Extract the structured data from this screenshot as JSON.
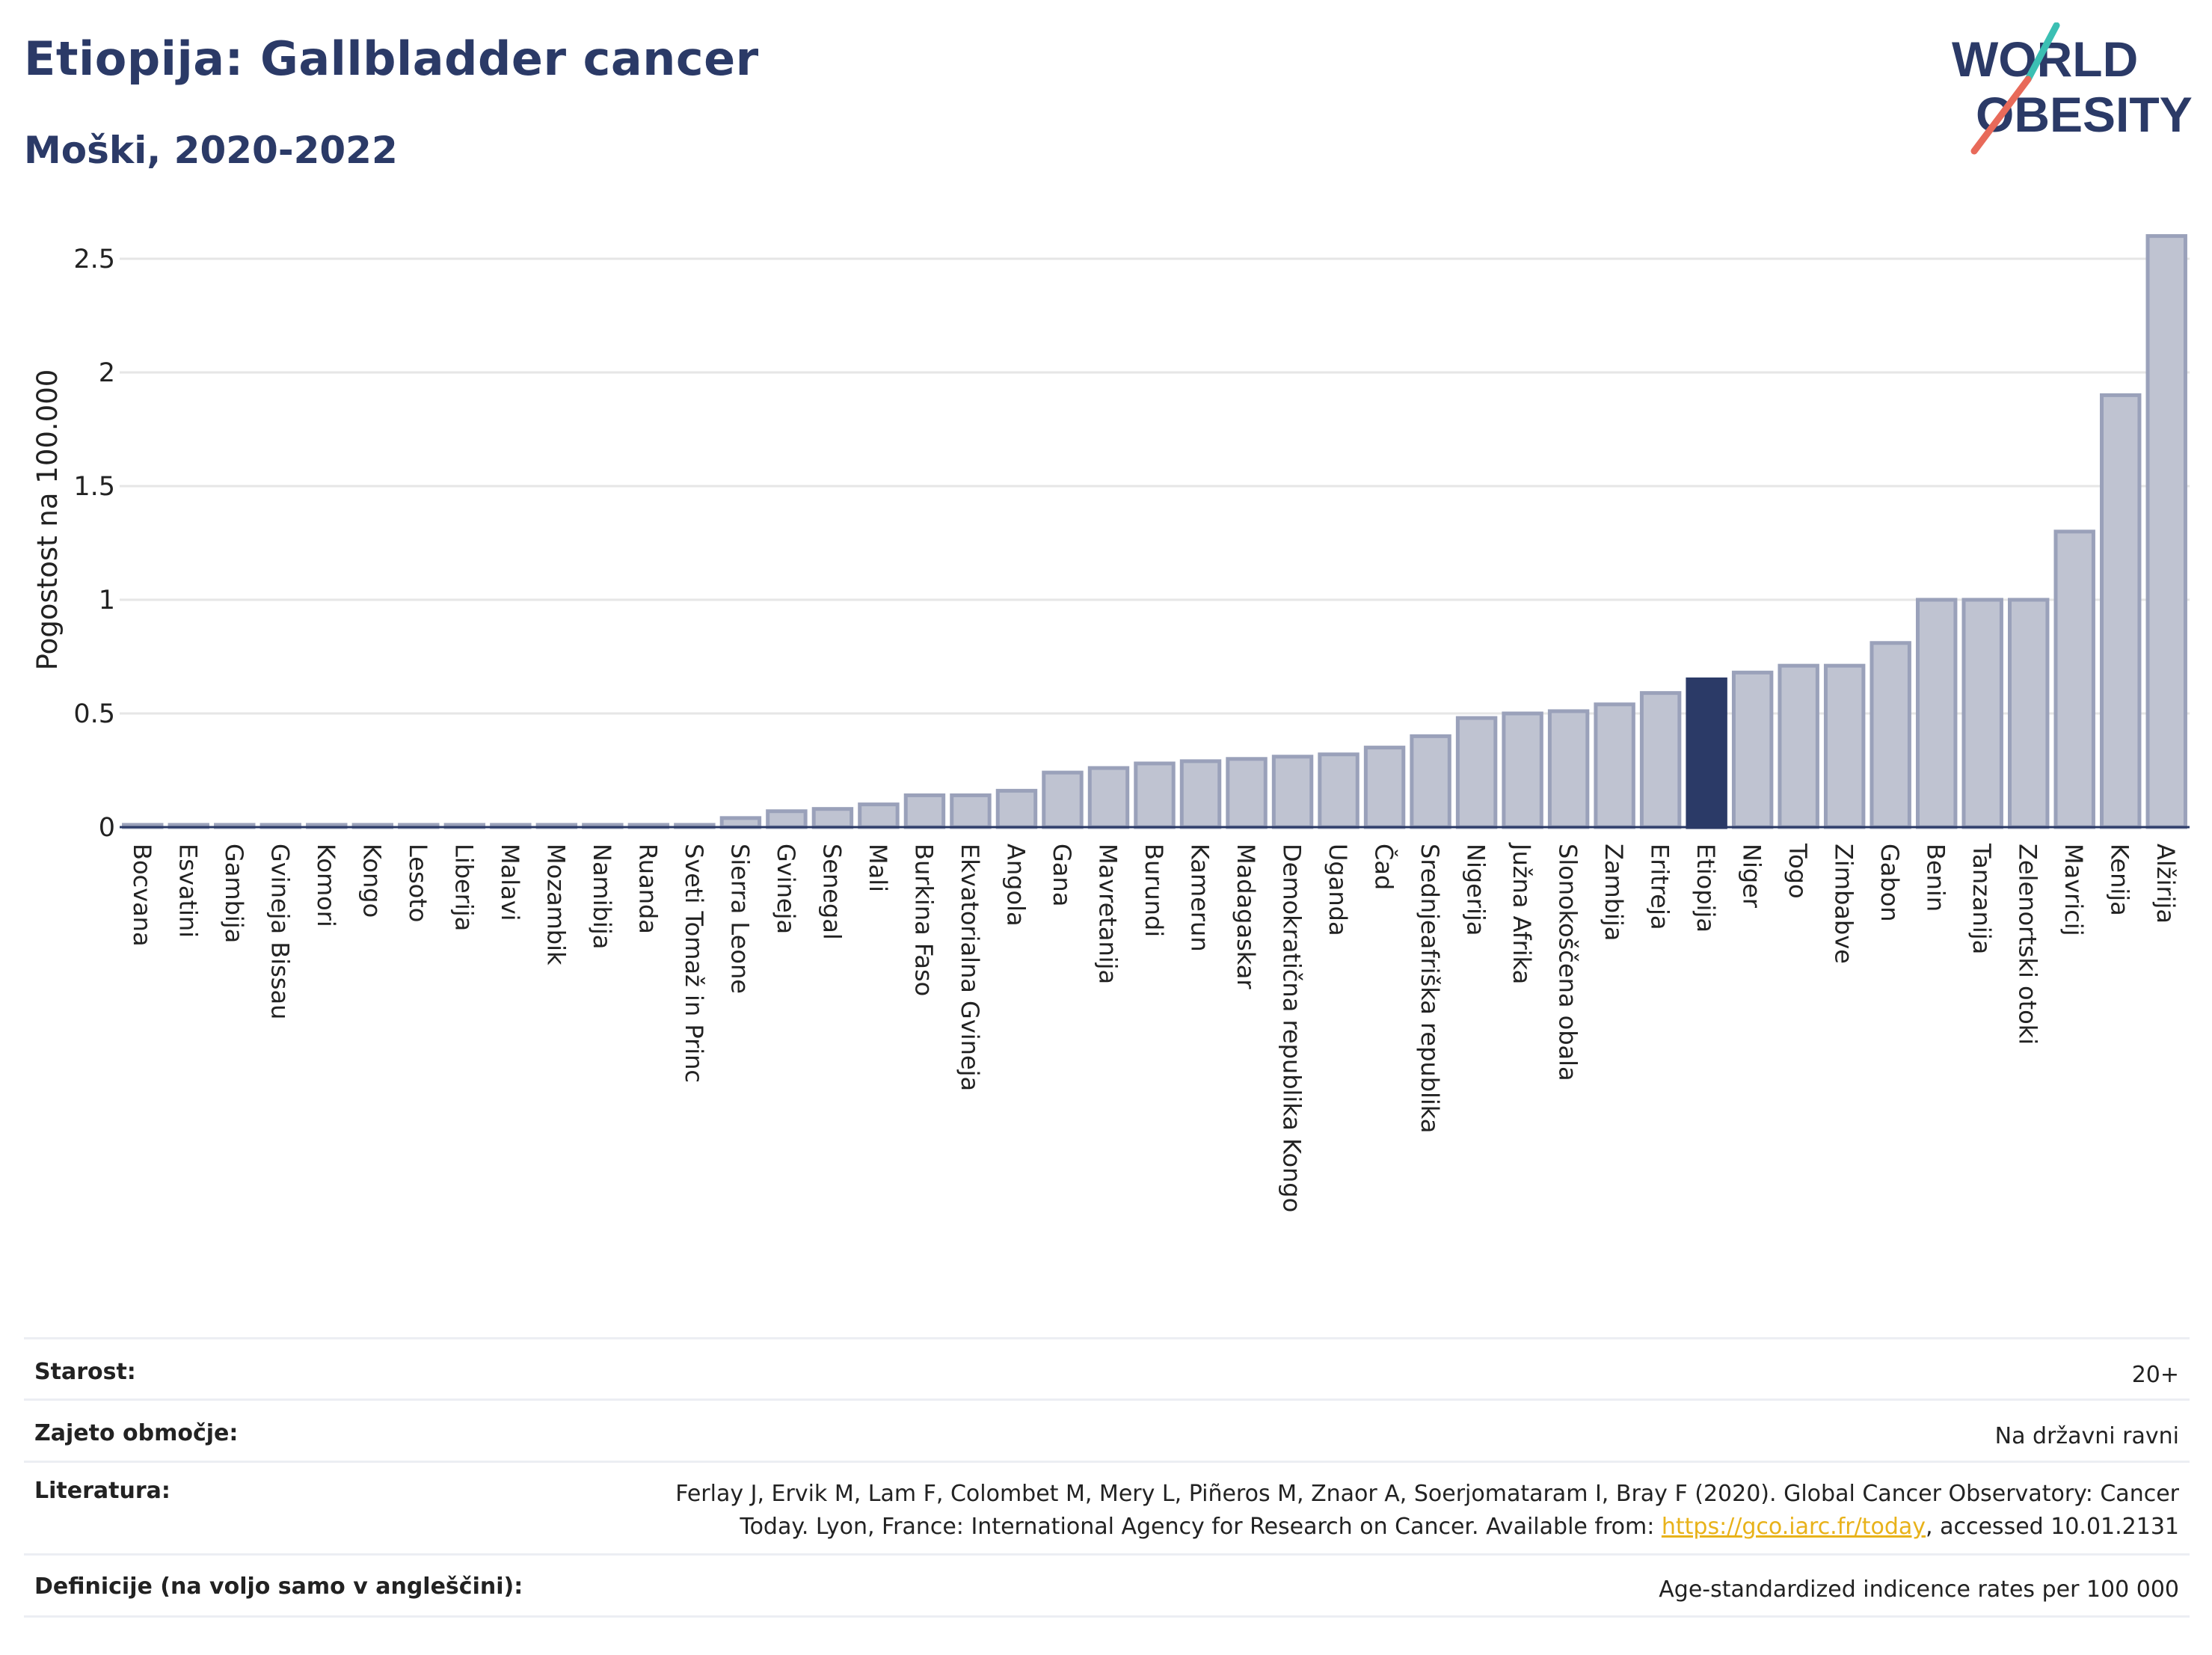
{
  "header": {
    "title": "Etiopija: Gallbladder cancer",
    "subtitle": "Moški, 2020-2022",
    "logo_line1": "WORLD",
    "logo_line2": "OBESITY"
  },
  "colors": {
    "bar": "#bfc3d1",
    "bar_stroke": "#9aa1ba",
    "highlight": "#2b3a67",
    "grid": "#e6e6e6",
    "axis": "#2b3a67",
    "logo_text": "#2b3a67",
    "logo_teal": "#3bbfb3",
    "logo_coral": "#e86a5a",
    "link": "#e8b21a"
  },
  "chart_data": {
    "type": "bar",
    "ylabel": "Pogostost na 100.000",
    "ylim": [
      0,
      2.7
    ],
    "yticks": [
      0,
      0.5,
      1,
      1.5,
      2,
      2.5
    ],
    "ytick_labels": [
      "0",
      "0.5",
      "1",
      "1.5",
      "2",
      "2.5"
    ],
    "grid": true,
    "highlight_category": "Etiopija",
    "categories": [
      "Bocvana",
      "Esvatini",
      "Gambija",
      "Gvineja Bissau",
      "Komori",
      "Kongo",
      "Lesoto",
      "Liberija",
      "Malavi",
      "Mozambik",
      "Namibija",
      "Ruanda",
      "Sveti Tomaž in Princ",
      "Sierra Leone",
      "Gvineja",
      "Senegal",
      "Mali",
      "Burkina Faso",
      "Ekvatorialna Gvineja",
      "Angola",
      "Gana",
      "Mavretanija",
      "Burundi",
      "Kamerun",
      "Madagaskar",
      "Demokratična republika Kongo",
      "Uganda",
      "Čad",
      "Srednjeafriška republika",
      "Nigerija",
      "Južna Afrika",
      "Slonokoščena obala",
      "Zambija",
      "Eritreja",
      "Etiopija",
      "Niger",
      "Togo",
      "Zimbabve",
      "Gabon",
      "Benin",
      "Tanzanija",
      "Zelenortski otoki",
      "Mavricij",
      "Kenija",
      "Alžirija"
    ],
    "values": [
      0.01,
      0.01,
      0.01,
      0.01,
      0.01,
      0.01,
      0.01,
      0.01,
      0.01,
      0.01,
      0.01,
      0.01,
      0.01,
      0.04,
      0.07,
      0.08,
      0.1,
      0.14,
      0.14,
      0.16,
      0.24,
      0.26,
      0.28,
      0.29,
      0.3,
      0.31,
      0.32,
      0.35,
      0.4,
      0.48,
      0.5,
      0.51,
      0.54,
      0.59,
      0.65,
      0.68,
      0.71,
      0.71,
      0.81,
      1.0,
      1.0,
      1.0,
      1.3,
      1.9,
      2.6
    ]
  },
  "meta": {
    "age_label": "Starost:",
    "age_value": "20+",
    "area_label": "Zajeto območje:",
    "area_value": "Na državni ravni",
    "ref_label": "Literatura:",
    "ref_line1": "Ferlay J, Ervik M, Lam F, Colombet M, Mery L, Piñeros M, Znaor A, Soerjomataram I, Bray F (2020). Global Cancer Observatory: Cancer",
    "ref_line2_pre": "Today. Lyon, France: International Agency for Research on Cancer. Available from: ",
    "ref_link": "https://gco.iarc.fr/today",
    "ref_line2_post": ", accessed 10.01.2131",
    "def_label": "Definicije (na voljo samo v angleščini):",
    "def_value": "Age-standardized indicence rates per 100 000"
  }
}
